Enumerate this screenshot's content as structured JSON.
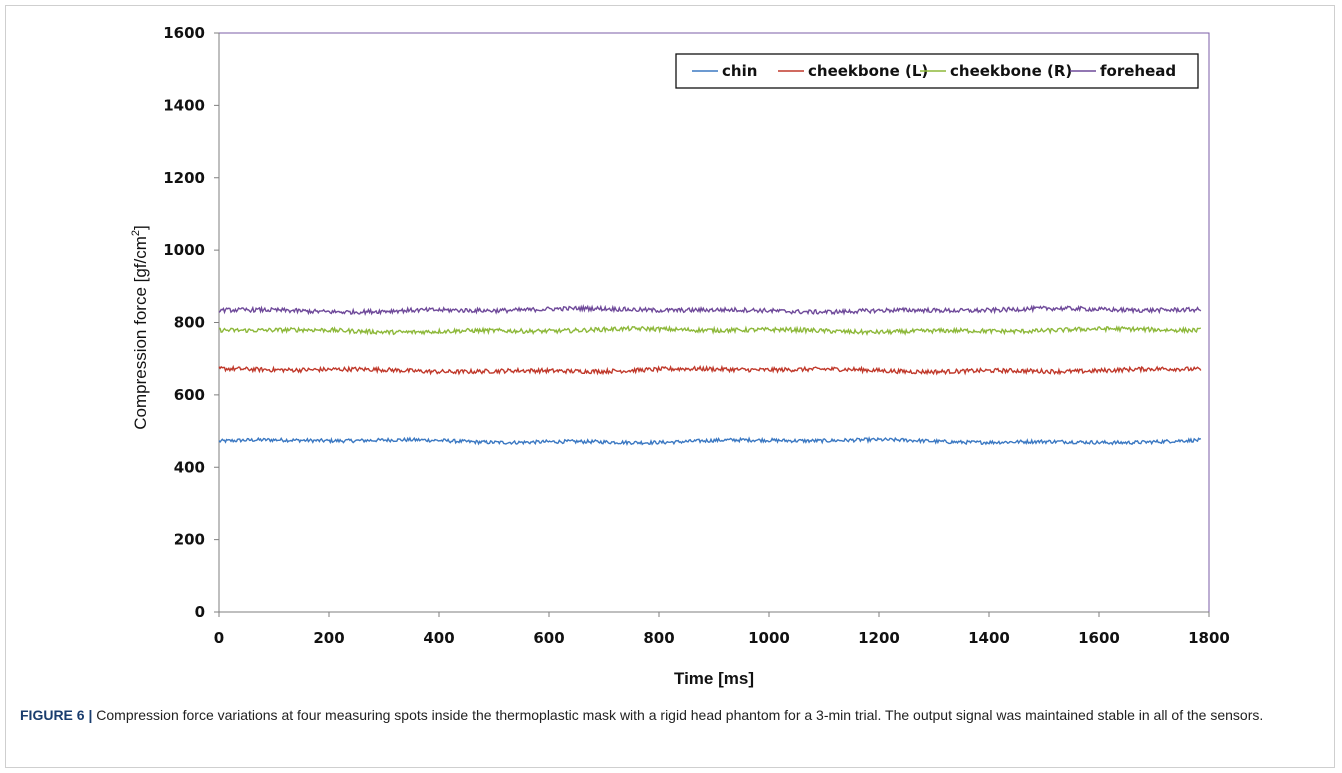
{
  "chart_data": {
    "type": "line",
    "xlabel": "Time [ms]",
    "ylabel": "Compression force [gf/cm",
    "ylabel_sup": "2",
    "ylabel_end": "]",
    "xlim": [
      0,
      1800
    ],
    "ylim": [
      0,
      1600
    ],
    "x_ticks": [
      0,
      200,
      400,
      600,
      800,
      1000,
      1200,
      1400,
      1600,
      1800
    ],
    "y_ticks": [
      0,
      200,
      400,
      600,
      800,
      1000,
      1200,
      1400,
      1600
    ],
    "grid": false,
    "legend_position": "top-right",
    "x_end": 1785,
    "series": [
      {
        "name": "chin",
        "color": "#3b78c2",
        "mean": 472,
        "noise": 5
      },
      {
        "name": "cheekbone (L)",
        "color": "#c0392b",
        "mean": 668,
        "noise": 6
      },
      {
        "name": "cheekbone (R)",
        "color": "#8db83a",
        "mean": 778,
        "noise": 6
      },
      {
        "name": "forehead",
        "color": "#6f4a9a",
        "mean": 834,
        "noise": 6
      }
    ]
  },
  "caption": {
    "label": "FIGURE 6 |",
    "text": " Compression force variations at four measuring spots inside the thermoplastic mask with a rigid head phantom for a 3-min trial. The output signal was maintained stable in all of the sensors."
  }
}
